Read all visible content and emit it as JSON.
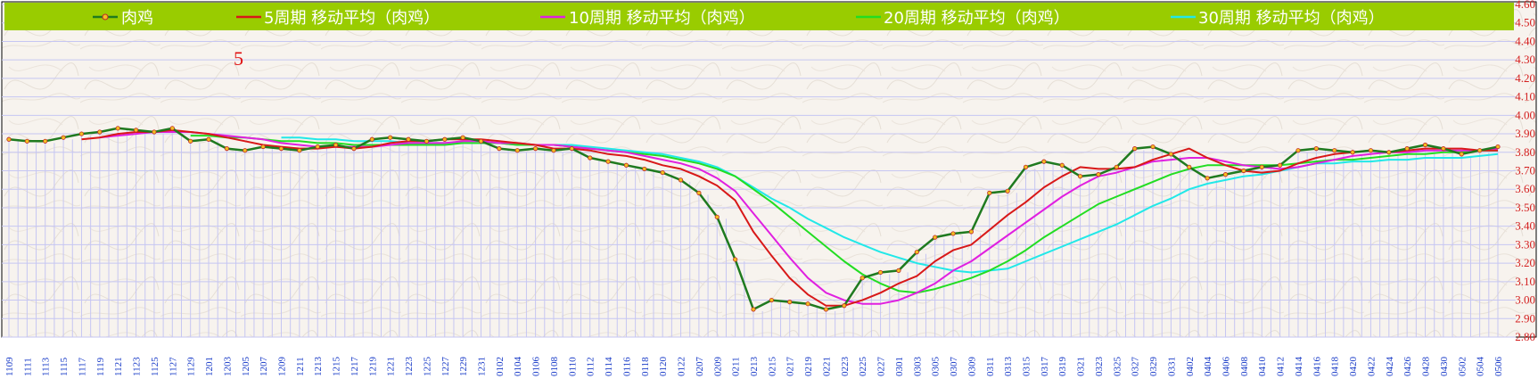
{
  "chart_data": {
    "type": "line",
    "annotation": "5",
    "legend_position": "top",
    "ylim": [
      2.8,
      4.6
    ],
    "y_ticks": [
      2.8,
      2.9,
      3.0,
      3.1,
      3.2,
      3.3,
      3.4,
      3.5,
      3.6,
      3.7,
      3.8,
      3.9,
      4.0,
      4.1,
      4.2,
      4.3,
      4.4,
      4.5,
      4.6
    ],
    "y_tick_labels": [
      "2.80",
      "2.90",
      "3.00",
      "3.10",
      "3.20",
      "3.30",
      "3.40",
      "3.50",
      "3.60",
      "3.70",
      "3.80",
      "3.90",
      "4.00",
      "4.10",
      "4.20",
      "4.30",
      "4.40",
      "4.50",
      "4.60"
    ],
    "x_labels": [
      "1109",
      "1111",
      "1113",
      "1115",
      "1117",
      "1119",
      "1121",
      "1123",
      "1125",
      "1127",
      "1129",
      "1201",
      "1203",
      "1205",
      "1207",
      "1209",
      "1211",
      "1213",
      "1215",
      "1217",
      "1219",
      "1221",
      "1223",
      "1225",
      "1227",
      "1229",
      "1231",
      "0102",
      "0104",
      "0106",
      "0108",
      "0110",
      "0112",
      "0114",
      "0116",
      "0118",
      "0120",
      "0122",
      "0207",
      "0209",
      "0211",
      "0213",
      "0215",
      "0217",
      "0219",
      "0221",
      "0223",
      "0225",
      "0227",
      "0301",
      "0303",
      "0305",
      "0307",
      "0309",
      "0311",
      "0313",
      "0315",
      "0317",
      "0319",
      "0321",
      "0323",
      "0325",
      "0327",
      "0329",
      "0331",
      "0402",
      "0404",
      "0406",
      "0408",
      "0410",
      "0412",
      "0414",
      "0416",
      "0418",
      "0420",
      "0422",
      "0424",
      "0426",
      "0428",
      "0430",
      "0502",
      "0504",
      "0506"
    ],
    "colors": {
      "legend_bg": "#99cc00",
      "grid": "#c6c6f2",
      "plot_bg": "#f7f3ee"
    },
    "series": [
      {
        "name": "肉鸡",
        "color": "#1f7a1f",
        "marker": true,
        "x": [
          "1109",
          "1111",
          "1113",
          "1115",
          "1117",
          "1119",
          "1121",
          "1123",
          "1125",
          "1127",
          "1129",
          "1201",
          "1203",
          "1205",
          "1207",
          "1209",
          "1211",
          "1213",
          "1215",
          "1217",
          "1219",
          "1221",
          "1223",
          "1225",
          "1227",
          "1229",
          "1231",
          "0102",
          "0104",
          "0106",
          "0108",
          "0110",
          "0112",
          "0114",
          "0116",
          "0118",
          "0120",
          "0122",
          "0207",
          "0209",
          "0211",
          "0213",
          "0215",
          "0217",
          "0219",
          "0221",
          "0223",
          "0225",
          "0227",
          "0301",
          "0303",
          "0305",
          "0307",
          "0309",
          "0311",
          "0313",
          "0315",
          "0317",
          "0319",
          "0321",
          "0323",
          "0325",
          "0327",
          "0329",
          "0331",
          "0402",
          "0404",
          "0406",
          "0408",
          "0410",
          "0412",
          "0414",
          "0416",
          "0418",
          "0420",
          "0422",
          "0424",
          "0426",
          "0428",
          "0430",
          "0502",
          "0504",
          "0506"
        ],
        "values": [
          3.87,
          3.86,
          3.86,
          3.88,
          3.9,
          3.91,
          3.93,
          3.92,
          3.91,
          3.93,
          3.86,
          3.87,
          3.82,
          3.81,
          3.83,
          3.82,
          3.81,
          3.83,
          3.84,
          3.82,
          3.87,
          3.88,
          3.87,
          3.86,
          3.87,
          3.88,
          3.86,
          3.82,
          3.81,
          3.82,
          3.81,
          3.82,
          3.77,
          3.75,
          3.73,
          3.71,
          3.69,
          3.65,
          3.58,
          3.45,
          3.22,
          2.95,
          3.0,
          2.99,
          2.98,
          2.95,
          2.97,
          3.12,
          3.15,
          3.16,
          3.26,
          3.34,
          3.36,
          3.37,
          3.58,
          3.59,
          3.72,
          3.75,
          3.73,
          3.67,
          3.68,
          3.72,
          3.82,
          3.83,
          3.79,
          3.72,
          3.66,
          3.68,
          3.7,
          3.72,
          3.73,
          3.81,
          3.82,
          3.81,
          3.8,
          3.81,
          3.8,
          3.82,
          3.84,
          3.82,
          3.79,
          3.81,
          3.83
        ]
      },
      {
        "name": "5周期 移动平均（肉鸡）",
        "color": "#d81818",
        "marker": false,
        "x": [
          "1109",
          "1111",
          "1113",
          "1115",
          "1117",
          "1119",
          "1121",
          "1123",
          "1125",
          "1127",
          "1129",
          "1201",
          "1203",
          "1205",
          "1207",
          "1209",
          "1211",
          "1213",
          "1215",
          "1217",
          "1219",
          "1221",
          "1223",
          "1225",
          "1227",
          "1229",
          "1231",
          "0102",
          "0104",
          "0106",
          "0108",
          "0110",
          "0112",
          "0114",
          "0116",
          "0118",
          "0120",
          "0122",
          "0207",
          "0209",
          "0211",
          "0213",
          "0215",
          "0217",
          "0219",
          "0221",
          "0223",
          "0225",
          "0227",
          "0301",
          "0303",
          "0305",
          "0307",
          "0309",
          "0311",
          "0313",
          "0315",
          "0317",
          "0319",
          "0321",
          "0323",
          "0325",
          "0327",
          "0329",
          "0331",
          "0402",
          "0404",
          "0406",
          "0408",
          "0410",
          "0412",
          "0414",
          "0416",
          "0418",
          "0420",
          "0422",
          "0424",
          "0426",
          "0428",
          "0430",
          "0502",
          "0504",
          "0506"
        ],
        "values": [
          null,
          null,
          null,
          null,
          3.87,
          3.88,
          3.9,
          3.91,
          3.91,
          3.92,
          3.91,
          3.9,
          3.88,
          3.86,
          3.84,
          3.83,
          3.82,
          3.82,
          3.83,
          3.82,
          3.83,
          3.85,
          3.86,
          3.86,
          3.87,
          3.87,
          3.87,
          3.86,
          3.85,
          3.84,
          3.82,
          3.82,
          3.81,
          3.79,
          3.78,
          3.76,
          3.73,
          3.71,
          3.67,
          3.62,
          3.54,
          3.37,
          3.24,
          3.12,
          3.03,
          2.97,
          2.97,
          3.0,
          3.04,
          3.09,
          3.13,
          3.21,
          3.27,
          3.3,
          3.38,
          3.46,
          3.53,
          3.61,
          3.67,
          3.72,
          3.71,
          3.71,
          3.72,
          3.76,
          3.79,
          3.82,
          3.77,
          3.73,
          3.7,
          3.69,
          3.7,
          3.74,
          3.77,
          3.79,
          3.8,
          3.81,
          3.8,
          3.81,
          3.82,
          3.82,
          3.82,
          3.81,
          3.81
        ]
      },
      {
        "name": "10周期 移动平均（肉鸡）",
        "color": "#e020e0",
        "marker": false,
        "x": [
          "1109",
          "1111",
          "1113",
          "1115",
          "1117",
          "1119",
          "1121",
          "1123",
          "1125",
          "1127",
          "1129",
          "1201",
          "1203",
          "1205",
          "1207",
          "1209",
          "1211",
          "1213",
          "1215",
          "1217",
          "1219",
          "1221",
          "1223",
          "1225",
          "1227",
          "1229",
          "1231",
          "0102",
          "0104",
          "0106",
          "0108",
          "0110",
          "0112",
          "0114",
          "0116",
          "0118",
          "0120",
          "0122",
          "0207",
          "0209",
          "0211",
          "0213",
          "0215",
          "0217",
          "0219",
          "0221",
          "0223",
          "0225",
          "0227",
          "0301",
          "0303",
          "0305",
          "0307",
          "0309",
          "0311",
          "0313",
          "0315",
          "0317",
          "0319",
          "0321",
          "0323",
          "0325",
          "0327",
          "0329",
          "0331",
          "0402",
          "0404",
          "0406",
          "0408",
          "0410",
          "0412",
          "0414",
          "0416",
          "0418",
          "0420",
          "0422",
          "0424",
          "0426",
          "0428",
          "0430",
          "0502",
          "0504",
          "0506"
        ],
        "values": [
          null,
          null,
          null,
          null,
          null,
          3.88,
          3.89,
          3.9,
          3.91,
          3.91,
          3.91,
          3.9,
          3.89,
          3.88,
          3.87,
          3.85,
          3.84,
          3.83,
          3.83,
          3.83,
          3.83,
          3.84,
          3.85,
          3.85,
          3.85,
          3.86,
          3.86,
          3.85,
          3.85,
          3.84,
          3.84,
          3.83,
          3.82,
          3.81,
          3.8,
          3.78,
          3.76,
          3.74,
          3.71,
          3.66,
          3.59,
          3.47,
          3.35,
          3.23,
          3.12,
          3.04,
          3.0,
          2.98,
          2.98,
          3.0,
          3.04,
          3.09,
          3.16,
          3.21,
          3.28,
          3.35,
          3.42,
          3.49,
          3.56,
          3.62,
          3.67,
          3.69,
          3.72,
          3.75,
          3.76,
          3.77,
          3.77,
          3.75,
          3.73,
          3.72,
          3.71,
          3.72,
          3.74,
          3.76,
          3.78,
          3.79,
          3.8,
          3.8,
          3.81,
          3.81,
          3.81,
          3.81,
          3.82
        ]
      },
      {
        "name": "20周期 移动平均（肉鸡）",
        "color": "#22dd22",
        "marker": false,
        "x": [
          "1109",
          "1111",
          "1113",
          "1115",
          "1117",
          "1119",
          "1121",
          "1123",
          "1125",
          "1127",
          "1129",
          "1201",
          "1203",
          "1205",
          "1207",
          "1209",
          "1211",
          "1213",
          "1215",
          "1217",
          "1219",
          "1221",
          "1223",
          "1225",
          "1227",
          "1229",
          "1231",
          "0102",
          "0104",
          "0106",
          "0108",
          "0110",
          "0112",
          "0114",
          "0116",
          "0118",
          "0120",
          "0122",
          "0207",
          "0209",
          "0211",
          "0213",
          "0215",
          "0217",
          "0219",
          "0221",
          "0223",
          "0225",
          "0227",
          "0301",
          "0303",
          "0305",
          "0307",
          "0309",
          "0311",
          "0313",
          "0315",
          "0317",
          "0319",
          "0321",
          "0323",
          "0325",
          "0327",
          "0329",
          "0331",
          "0402",
          "0404",
          "0406",
          "0408",
          "0410",
          "0412",
          "0414",
          "0416",
          "0418",
          "0420",
          "0422",
          "0424",
          "0426",
          "0428",
          "0430",
          "0502",
          "0504",
          "0506"
        ],
        "values": [
          null,
          null,
          null,
          null,
          null,
          null,
          null,
          null,
          null,
          null,
          3.89,
          3.89,
          3.88,
          3.88,
          3.87,
          3.86,
          3.86,
          3.85,
          3.85,
          3.84,
          3.84,
          3.84,
          3.84,
          3.84,
          3.84,
          3.85,
          3.85,
          3.85,
          3.84,
          3.84,
          3.84,
          3.83,
          3.82,
          3.81,
          3.8,
          3.79,
          3.78,
          3.76,
          3.74,
          3.71,
          3.67,
          3.6,
          3.53,
          3.45,
          3.37,
          3.29,
          3.21,
          3.14,
          3.09,
          3.05,
          3.04,
          3.06,
          3.09,
          3.12,
          3.16,
          3.21,
          3.27,
          3.34,
          3.4,
          3.46,
          3.52,
          3.56,
          3.6,
          3.64,
          3.68,
          3.71,
          3.73,
          3.73,
          3.73,
          3.73,
          3.73,
          3.74,
          3.75,
          3.76,
          3.76,
          3.77,
          3.78,
          3.79,
          3.79,
          3.8,
          3.8,
          3.81,
          3.81
        ]
      },
      {
        "name": "30周期 移动平均（肉鸡）",
        "color": "#22e8e8",
        "marker": false,
        "x": [
          "1109",
          "1111",
          "1113",
          "1115",
          "1117",
          "1119",
          "1121",
          "1123",
          "1125",
          "1127",
          "1129",
          "1201",
          "1203",
          "1205",
          "1207",
          "1209",
          "1211",
          "1213",
          "1215",
          "1217",
          "1219",
          "1221",
          "1223",
          "1225",
          "1227",
          "1229",
          "1231",
          "0102",
          "0104",
          "0106",
          "0108",
          "0110",
          "0112",
          "0114",
          "0116",
          "0118",
          "0120",
          "0122",
          "0207",
          "0209",
          "0211",
          "0213",
          "0215",
          "0217",
          "0219",
          "0221",
          "0223",
          "0225",
          "0227",
          "0301",
          "0303",
          "0305",
          "0307",
          "0309",
          "0311",
          "0313",
          "0315",
          "0317",
          "0319",
          "0321",
          "0323",
          "0325",
          "0327",
          "0329",
          "0331",
          "0402",
          "0404",
          "0406",
          "0408",
          "0410",
          "0412",
          "0414",
          "0416",
          "0418",
          "0420",
          "0422",
          "0424",
          "0426",
          "0428",
          "0430",
          "0502",
          "0504",
          "0506"
        ],
        "values": [
          null,
          null,
          null,
          null,
          null,
          null,
          null,
          null,
          null,
          null,
          null,
          null,
          null,
          null,
          null,
          3.88,
          3.88,
          3.87,
          3.87,
          3.86,
          3.86,
          3.86,
          3.85,
          3.85,
          3.85,
          3.85,
          3.85,
          3.85,
          3.84,
          3.84,
          3.84,
          3.84,
          3.83,
          3.82,
          3.81,
          3.8,
          3.79,
          3.77,
          3.75,
          3.72,
          3.67,
          3.61,
          3.55,
          3.5,
          3.44,
          3.39,
          3.34,
          3.3,
          3.26,
          3.23,
          3.2,
          3.18,
          3.16,
          3.15,
          3.16,
          3.17,
          3.21,
          3.25,
          3.29,
          3.33,
          3.37,
          3.41,
          3.46,
          3.51,
          3.55,
          3.6,
          3.63,
          3.65,
          3.67,
          3.68,
          3.7,
          3.72,
          3.74,
          3.74,
          3.75,
          3.75,
          3.76,
          3.76,
          3.77,
          3.77,
          3.77,
          3.78,
          3.79
        ]
      }
    ]
  }
}
